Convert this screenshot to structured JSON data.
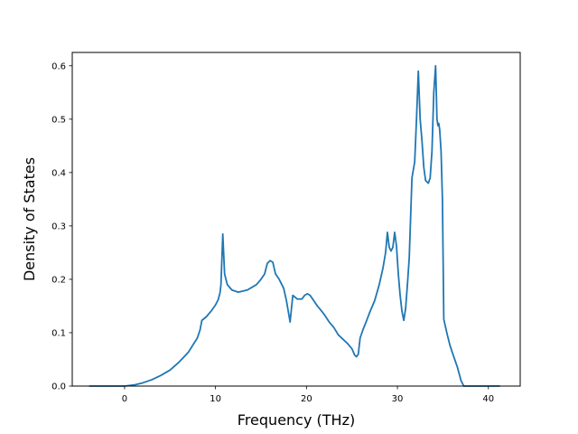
{
  "chart_data": {
    "type": "line",
    "title": "",
    "xlabel": "Frequency (THz)",
    "ylabel": "Density of States",
    "xlim": [
      -5.75,
      43.5
    ],
    "ylim": [
      0.0,
      0.625
    ],
    "xticks": [
      0,
      10,
      20,
      30,
      40
    ],
    "xtick_labels": [
      "0",
      "10",
      "20",
      "30",
      "40"
    ],
    "yticks": [
      0.0,
      0.1,
      0.2,
      0.3,
      0.4,
      0.5,
      0.6
    ],
    "ytick_labels": [
      "0.0",
      "0.1",
      "0.2",
      "0.3",
      "0.4",
      "0.5",
      "0.6"
    ],
    "grid": false,
    "legend": false,
    "line_color": "#1f77b4",
    "series": [
      {
        "x": [
          -3.8,
          -2.0,
          0.0,
          1.0,
          2.0,
          3.0,
          4.0,
          5.0,
          6.0,
          7.0,
          8.0,
          8.3,
          8.5,
          9.0,
          9.5,
          10.0,
          10.3,
          10.5,
          10.6,
          10.8,
          11.0,
          11.3,
          11.8,
          12.5,
          13.5,
          14.5,
          15.0,
          15.4,
          15.7,
          16.0,
          16.3,
          16.6,
          17.0,
          17.5,
          17.8,
          18.0,
          18.2,
          18.5,
          19.0,
          19.5,
          19.8,
          20.1,
          20.4,
          20.8,
          21.2,
          21.6,
          22.0,
          22.5,
          23.0,
          23.5,
          24.0,
          24.5,
          25.0,
          25.3,
          25.5,
          25.7,
          25.9,
          26.2,
          26.6,
          27.0,
          27.5,
          28.0,
          28.4,
          28.7,
          28.9,
          29.1,
          29.3,
          29.5,
          29.7,
          29.9,
          30.1,
          30.3,
          30.5,
          30.7,
          30.9,
          31.1,
          31.3,
          31.6,
          31.9,
          32.1,
          32.3,
          32.5,
          32.7,
          32.9,
          33.1,
          33.4,
          33.6,
          33.8,
          34.0,
          34.2,
          34.35,
          34.45,
          34.55,
          34.65,
          34.8,
          34.95,
          35.1,
          35.3,
          35.5,
          35.8,
          36.2,
          36.6,
          37.0,
          37.3,
          37.5,
          37.8,
          38.5,
          39.5,
          41.2
        ],
        "y": [
          0.0,
          0.0,
          0.0,
          0.002,
          0.006,
          0.012,
          0.02,
          0.03,
          0.045,
          0.063,
          0.09,
          0.105,
          0.123,
          0.13,
          0.14,
          0.152,
          0.162,
          0.175,
          0.19,
          0.285,
          0.21,
          0.19,
          0.18,
          0.176,
          0.18,
          0.19,
          0.2,
          0.21,
          0.23,
          0.235,
          0.232,
          0.21,
          0.2,
          0.183,
          0.16,
          0.14,
          0.12,
          0.17,
          0.163,
          0.163,
          0.17,
          0.173,
          0.17,
          0.16,
          0.15,
          0.142,
          0.133,
          0.12,
          0.11,
          0.096,
          0.088,
          0.08,
          0.07,
          0.058,
          0.055,
          0.06,
          0.09,
          0.105,
          0.122,
          0.14,
          0.16,
          0.19,
          0.22,
          0.25,
          0.288,
          0.26,
          0.253,
          0.26,
          0.288,
          0.262,
          0.21,
          0.17,
          0.14,
          0.123,
          0.145,
          0.19,
          0.24,
          0.39,
          0.42,
          0.5,
          0.59,
          0.5,
          0.46,
          0.41,
          0.385,
          0.38,
          0.39,
          0.44,
          0.55,
          0.6,
          0.5,
          0.488,
          0.492,
          0.48,
          0.44,
          0.35,
          0.125,
          0.11,
          0.095,
          0.075,
          0.055,
          0.035,
          0.01,
          0.0,
          0.0,
          0.0,
          0.0,
          0.0,
          0.0
        ]
      }
    ]
  }
}
